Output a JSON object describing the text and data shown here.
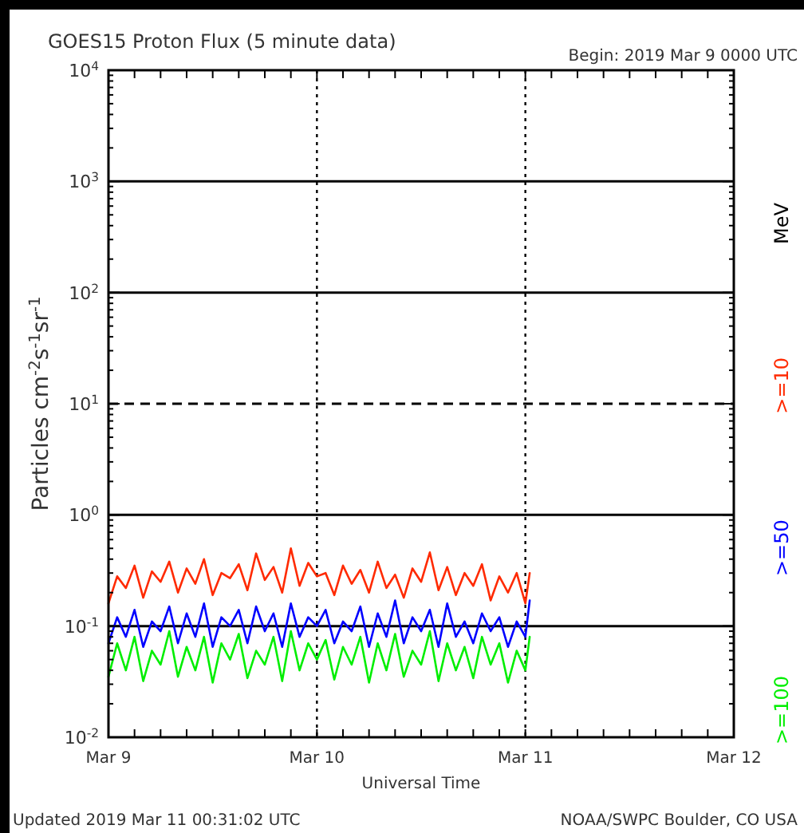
{
  "chart_data": {
    "type": "line",
    "title": "GOES15 Proton Flux (5 minute data)",
    "subtitle": "Begin: 2019 Mar 9 0000 UTC",
    "xlabel": "Universal Time",
    "ylabel": "Particles cm$^{-2}$s$^{-1}$sr$^{-1}$",
    "legend_title": "MeV",
    "legend": "right",
    "log": "y",
    "grid": "x",
    "annotations": [
      "Updated 2019 Mar 11 00:31:02 UTC",
      "NOAA/SWPC Boulder, CO USA"
    ],
    "xlim": [
      "2019-03-09",
      "2019-03-12"
    ],
    "xticks": [
      {
        "value": "2019-03-09",
        "label": "Mar 9"
      },
      {
        "value": "2019-03-10",
        "label": "Mar 10"
      },
      {
        "value": "2019-03-11",
        "label": "Mar 11"
      },
      {
        "value": "2019-03-12",
        "label": "Mar 12"
      }
    ],
    "ylim": [
      0.01,
      10000
    ],
    "yticks": [
      {
        "value": 0.01,
        "label": "10$^{-2}$"
      },
      {
        "value": 0.1,
        "label": "10$^{-1}$"
      },
      {
        "value": 1,
        "label": "10$^{0}$"
      },
      {
        "value": 10,
        "label": "10$^{1}$"
      },
      {
        "value": 100,
        "label": "10$^{2}$"
      },
      {
        "value": 1000,
        "label": "10$^{3}$"
      },
      {
        "value": 10000,
        "label": "10$^{4}$"
      }
    ],
    "ref_lines": [
      {
        "axis": "y",
        "value": 0.1,
        "line_style": "solid"
      },
      {
        "axis": "y",
        "value": 1,
        "line_style": "solid"
      },
      {
        "axis": "y",
        "value": 10,
        "line_style": "dashed"
      },
      {
        "axis": "y",
        "value": 100,
        "line_style": "solid"
      },
      {
        "axis": "y",
        "value": 1000,
        "line_style": "solid"
      }
    ],
    "x": [
      "2019-03-09T00:00",
      "2019-03-09T01:00",
      "2019-03-09T02:00",
      "2019-03-09T03:00",
      "2019-03-09T04:00",
      "2019-03-09T05:00",
      "2019-03-09T06:00",
      "2019-03-09T07:00",
      "2019-03-09T08:00",
      "2019-03-09T09:00",
      "2019-03-09T10:00",
      "2019-03-09T11:00",
      "2019-03-09T12:00",
      "2019-03-09T13:00",
      "2019-03-09T14:00",
      "2019-03-09T15:00",
      "2019-03-09T16:00",
      "2019-03-09T17:00",
      "2019-03-09T18:00",
      "2019-03-09T19:00",
      "2019-03-09T20:00",
      "2019-03-09T21:00",
      "2019-03-09T22:00",
      "2019-03-09T23:00",
      "2019-03-10T00:00",
      "2019-03-10T01:00",
      "2019-03-10T02:00",
      "2019-03-10T03:00",
      "2019-03-10T04:00",
      "2019-03-10T05:00",
      "2019-03-10T06:00",
      "2019-03-10T07:00",
      "2019-03-10T08:00",
      "2019-03-10T09:00",
      "2019-03-10T10:00",
      "2019-03-10T11:00",
      "2019-03-10T12:00",
      "2019-03-10T13:00",
      "2019-03-10T14:00",
      "2019-03-10T15:00",
      "2019-03-10T16:00",
      "2019-03-10T17:00",
      "2019-03-10T18:00",
      "2019-03-10T19:00",
      "2019-03-10T20:00",
      "2019-03-10T21:00",
      "2019-03-10T22:00",
      "2019-03-10T23:00",
      "2019-03-11T00:00",
      "2019-03-11T00:30"
    ],
    "series": [
      {
        "name": ">=10",
        "color": "#ff2a00",
        "values": [
          0.16,
          0.28,
          0.22,
          0.35,
          0.18,
          0.31,
          0.25,
          0.38,
          0.2,
          0.33,
          0.24,
          0.4,
          0.19,
          0.3,
          0.27,
          0.36,
          0.21,
          0.45,
          0.26,
          0.34,
          0.2,
          0.5,
          0.23,
          0.37,
          0.28,
          0.3,
          0.19,
          0.35,
          0.24,
          0.32,
          0.2,
          0.38,
          0.22,
          0.29,
          0.18,
          0.33,
          0.25,
          0.46,
          0.21,
          0.34,
          0.19,
          0.3,
          0.23,
          0.36,
          0.17,
          0.28,
          0.2,
          0.3,
          0.16,
          0.3
        ]
      },
      {
        "name": ">=50",
        "color": "#0000ff",
        "values": [
          0.07,
          0.12,
          0.08,
          0.14,
          0.065,
          0.11,
          0.09,
          0.15,
          0.07,
          0.13,
          0.08,
          0.16,
          0.065,
          0.12,
          0.1,
          0.14,
          0.07,
          0.15,
          0.09,
          0.13,
          0.065,
          0.16,
          0.08,
          0.12,
          0.1,
          0.14,
          0.07,
          0.11,
          0.09,
          0.15,
          0.065,
          0.13,
          0.08,
          0.17,
          0.07,
          0.12,
          0.09,
          0.14,
          0.065,
          0.16,
          0.08,
          0.11,
          0.07,
          0.13,
          0.09,
          0.12,
          0.065,
          0.11,
          0.08,
          0.17
        ]
      },
      {
        "name": ">=100",
        "color": "#00ee00",
        "values": [
          0.035,
          0.07,
          0.04,
          0.08,
          0.032,
          0.06,
          0.045,
          0.09,
          0.035,
          0.065,
          0.04,
          0.08,
          0.031,
          0.07,
          0.05,
          0.085,
          0.034,
          0.06,
          0.045,
          0.08,
          0.032,
          0.09,
          0.04,
          0.07,
          0.05,
          0.075,
          0.033,
          0.065,
          0.045,
          0.08,
          0.031,
          0.07,
          0.04,
          0.085,
          0.035,
          0.06,
          0.045,
          0.09,
          0.032,
          0.07,
          0.04,
          0.065,
          0.034,
          0.08,
          0.045,
          0.07,
          0.031,
          0.06,
          0.04,
          0.08
        ]
      }
    ]
  }
}
